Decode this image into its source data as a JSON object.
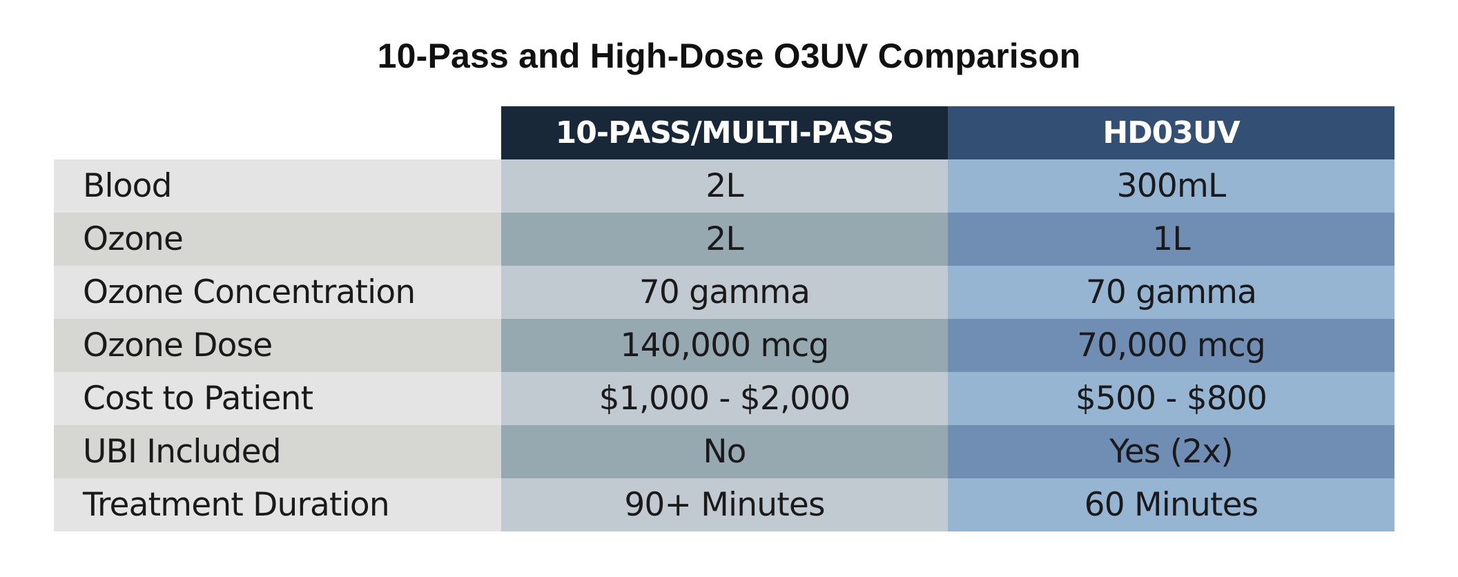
{
  "title": "10-Pass and High-Dose O3UV Comparison",
  "table": {
    "headers": [
      "",
      "10-PASS/MULTI-PASS",
      "HD03UV"
    ],
    "rows": [
      {
        "label": "Blood",
        "multi_pass": "2L",
        "hd03uv": "300mL"
      },
      {
        "label": "Ozone",
        "multi_pass": "2L",
        "hd03uv": "1L"
      },
      {
        "label": "Ozone Concentration",
        "multi_pass": "70 gamma",
        "hd03uv": "70 gamma"
      },
      {
        "label": "Ozone Dose",
        "multi_pass": "140,000 mcg",
        "hd03uv": "70,000 mcg"
      },
      {
        "label": "Cost to Patient",
        "multi_pass": "$1,000 - $2,000",
        "hd03uv": "$500 - $800"
      },
      {
        "label": "UBI Included",
        "multi_pass": "No",
        "hd03uv": "Yes (2x)"
      },
      {
        "label": "Treatment Duration",
        "multi_pass": "90+ Minutes",
        "hd03uv": "60 Minutes"
      }
    ]
  },
  "colors": {
    "header_multi_pass": "#182838",
    "header_hd03uv": "#334f73",
    "label_light": "#e4e4e4",
    "label_dark": "#d6d6d2",
    "multi_pass_light": "#c2cad1",
    "multi_pass_dark": "#96a9b1",
    "hd03uv_light": "#95b5d2",
    "hd03uv_dark": "#708db3"
  }
}
